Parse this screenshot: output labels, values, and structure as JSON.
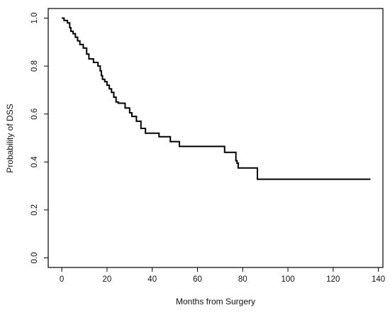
{
  "chart_data": {
    "type": "line",
    "title": "",
    "xlabel": "Months from Surgery",
    "ylabel": "Probability of DSS",
    "xlim": [
      -6,
      142
    ],
    "ylim": [
      -0.04,
      1.04
    ],
    "xticks": [
      0,
      20,
      40,
      60,
      80,
      100,
      120,
      140
    ],
    "yticks": [
      0.0,
      0.2,
      0.4,
      0.6,
      0.8,
      1.0
    ],
    "xtick_labels": [
      "0",
      "20",
      "40",
      "60",
      "80",
      "100",
      "120",
      "140"
    ],
    "ytick_labels": [
      "0.0",
      "0.2",
      "0.4",
      "0.6",
      "0.8",
      "1.0"
    ],
    "grid": false,
    "series": [
      {
        "step": "post",
        "color": "#000000",
        "x": [
          0,
          1,
          2.5,
          3.5,
          4,
          5,
          6,
          7,
          8,
          9.5,
          11,
          12,
          14,
          16,
          17,
          17.5,
          18,
          19,
          20,
          21,
          22,
          23,
          24,
          25,
          28,
          30,
          31,
          33,
          35,
          37,
          43,
          48,
          52,
          72,
          77,
          77.5,
          78,
          86.5,
          136.5
        ],
        "y": [
          1.0,
          0.99,
          0.98,
          0.96,
          0.945,
          0.935,
          0.92,
          0.905,
          0.89,
          0.875,
          0.85,
          0.83,
          0.815,
          0.8,
          0.78,
          0.76,
          0.745,
          0.735,
          0.72,
          0.705,
          0.69,
          0.67,
          0.65,
          0.645,
          0.625,
          0.605,
          0.59,
          0.57,
          0.54,
          0.52,
          0.505,
          0.485,
          0.465,
          0.44,
          0.405,
          0.395,
          0.375,
          0.328,
          0.328
        ]
      }
    ]
  }
}
